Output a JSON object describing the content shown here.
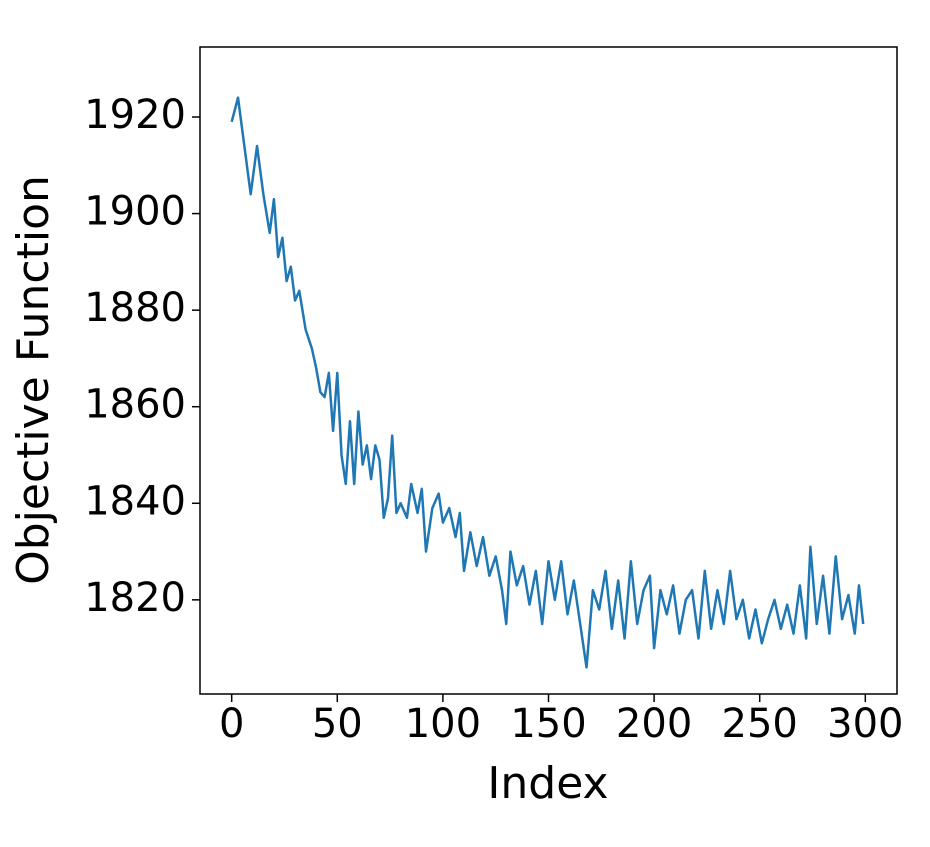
{
  "chart_data": {
    "type": "line",
    "x_label": "Index",
    "y_label": "Objective Function",
    "x": [
      0,
      3,
      6,
      9,
      12,
      15,
      18,
      20,
      22,
      24,
      26,
      28,
      30,
      32,
      35,
      38,
      40,
      42,
      44,
      46,
      48,
      50,
      52,
      54,
      56,
      58,
      60,
      62,
      64,
      66,
      68,
      70,
      72,
      74,
      76,
      78,
      80,
      83,
      85,
      88,
      90,
      92,
      95,
      98,
      100,
      103,
      106,
      108,
      110,
      113,
      116,
      119,
      122,
      125,
      128,
      130,
      132,
      135,
      138,
      141,
      144,
      147,
      150,
      153,
      156,
      159,
      162,
      165,
      168,
      171,
      174,
      177,
      180,
      183,
      186,
      189,
      192,
      195,
      198,
      200,
      203,
      206,
      209,
      212,
      215,
      218,
      221,
      224,
      227,
      230,
      233,
      236,
      239,
      242,
      245,
      248,
      251,
      254,
      257,
      260,
      263,
      266,
      269,
      272,
      274,
      277,
      280,
      283,
      286,
      289,
      292,
      295,
      297,
      299
    ],
    "series": [
      {
        "name": "Objective Function",
        "color": "#1f77b4",
        "values": [
          1919,
          1924,
          1914,
          1904,
          1914,
          1904,
          1896,
          1903,
          1891,
          1895,
          1886,
          1889,
          1882,
          1884,
          1876,
          1872,
          1868,
          1863,
          1862,
          1867,
          1855,
          1867,
          1850,
          1844,
          1857,
          1844,
          1859,
          1848,
          1852,
          1845,
          1852,
          1849,
          1837,
          1841,
          1854,
          1838,
          1840,
          1837,
          1844,
          1838,
          1843,
          1830,
          1839,
          1842,
          1836,
          1839,
          1833,
          1838,
          1826,
          1834,
          1827,
          1833,
          1825,
          1829,
          1822,
          1815,
          1830,
          1823,
          1827,
          1819,
          1826,
          1815,
          1828,
          1820,
          1828,
          1817,
          1824,
          1815,
          1806,
          1822,
          1818,
          1826,
          1814,
          1824,
          1812,
          1828,
          1815,
          1822,
          1825,
          1810,
          1822,
          1817,
          1823,
          1813,
          1820,
          1822,
          1812,
          1826,
          1814,
          1822,
          1815,
          1826,
          1816,
          1820,
          1812,
          1818,
          1811,
          1816,
          1820,
          1814,
          1819,
          1813,
          1823,
          1812,
          1831,
          1815,
          1825,
          1813,
          1829,
          1816,
          1821,
          1813,
          1823,
          1815
        ]
      }
    ],
    "xlim": [
      -15,
      315
    ],
    "ylim": [
      1800.5,
      1934.5
    ],
    "xticks": [
      0,
      50,
      100,
      150,
      200,
      250,
      300
    ],
    "yticks": [
      1820,
      1840,
      1860,
      1880,
      1900,
      1920
    ],
    "grid": false
  }
}
